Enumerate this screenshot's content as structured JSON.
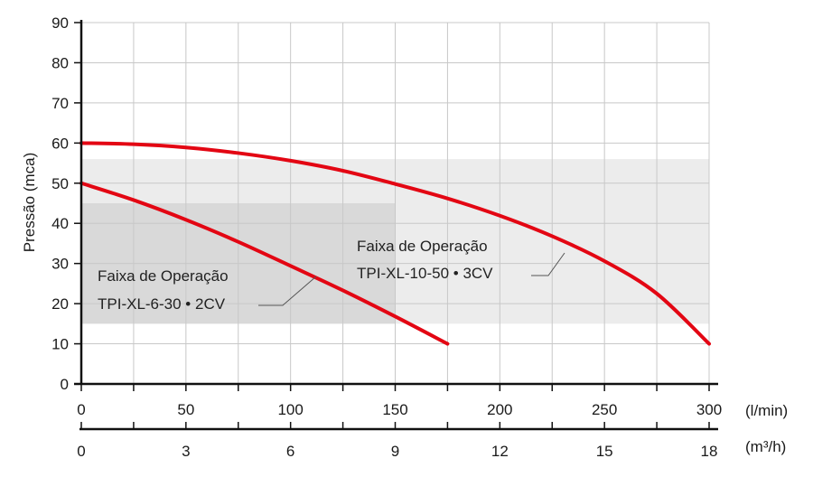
{
  "chart_data": {
    "type": "line",
    "ylabel": "Pressão (mca)",
    "ylim": [
      0,
      90
    ],
    "yticks": [
      0,
      10,
      20,
      30,
      40,
      50,
      60,
      70,
      80,
      90
    ],
    "xlim": [
      0,
      300
    ],
    "x_unit": "(l/min)",
    "xticks": [
      0,
      50,
      100,
      150,
      200,
      250,
      300
    ],
    "x2_unit": "(m³/h)",
    "x2ticks": [
      0,
      3,
      6,
      9,
      12,
      15,
      18
    ],
    "grid": true,
    "colors": {
      "curve": "#e30613",
      "region_small": "#d9d9d9",
      "region_large": "#ececec",
      "grid": "#c8c8c8",
      "axis": "#111111"
    },
    "regions": [
      {
        "x": [
          0,
          300
        ],
        "y": [
          15,
          56
        ],
        "label_line1": "Faixa de Operação",
        "label_line2": "TPI-XL-10-50 • 3CV"
      },
      {
        "x": [
          0,
          150
        ],
        "y": [
          15,
          45
        ],
        "label_line1": "Faixa de Operação",
        "label_line2": "TPI-XL-6-30 • 2CV"
      }
    ],
    "series": [
      {
        "x": [
          0,
          25,
          50,
          75,
          100,
          125,
          150,
          175
        ],
        "y": [
          50,
          45.8,
          40.9,
          35.4,
          29.4,
          23.3,
          16.8,
          10
        ]
      },
      {
        "x": [
          0,
          25,
          50,
          75,
          100,
          125,
          150,
          175,
          200,
          225,
          250,
          275,
          300
        ],
        "y": [
          60,
          59.7,
          58.9,
          57.5,
          55.6,
          53.1,
          49.8,
          46.2,
          41.9,
          36.8,
          30.6,
          22.5,
          10
        ]
      }
    ]
  }
}
